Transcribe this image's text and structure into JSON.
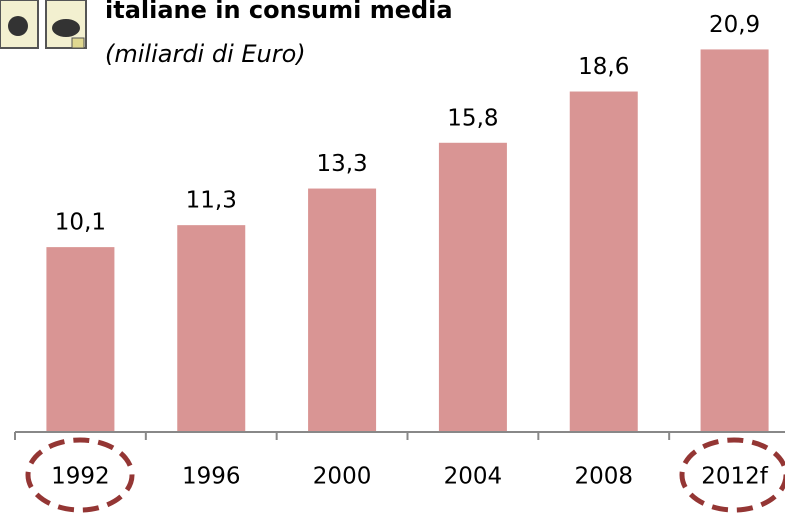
{
  "chart_data": {
    "type": "bar",
    "title": "italiane in consumi media",
    "subtitle": "(miliardi di Euro)",
    "categories": [
      "1992",
      "1996",
      "2000",
      "2004",
      "2008",
      "2012f"
    ],
    "values": [
      10.1,
      11.3,
      13.3,
      15.8,
      18.6,
      20.9
    ],
    "value_labels": [
      "10,1",
      "11,3",
      "13,3",
      "15,8",
      "18,6",
      "20,9"
    ],
    "color": "#d99594",
    "ylim": [
      0,
      23.6
    ]
  }
}
